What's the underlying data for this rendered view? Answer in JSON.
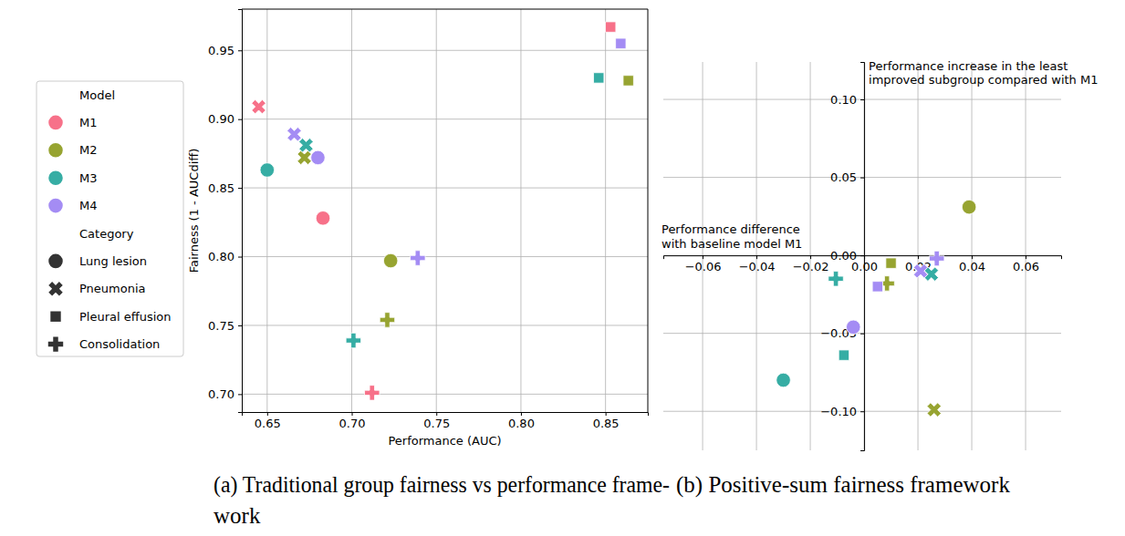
{
  "chart_data": [
    {
      "type": "scatter",
      "caption": "(a) Traditional group fairness vs performance frame-\nwork",
      "xlabel": "Performance (AUC)",
      "ylabel": "Fairness (1 - AUCdiff)",
      "xlim": [
        0.635,
        0.875
      ],
      "ylim": [
        0.687,
        0.98
      ],
      "xticks": [
        0.65,
        {
          "value": 0.7,
          "label": "0.70"
        },
        0.75,
        {
          "value": 0.8,
          "label": "0.80"
        },
        0.85
      ],
      "yticks": [
        {
          "value": 0.7,
          "label": "0.70"
        },
        0.75,
        {
          "value": 0.8,
          "label": "0.80"
        },
        0.85,
        {
          "value": 0.9,
          "label": "0.90"
        },
        0.95
      ],
      "grid": true,
      "legend": "left",
      "model_legend_title": "Model",
      "category_legend_title": "Category",
      "category_legend": [
        {
          "name": "Lung lesion",
          "marker": "circle"
        },
        {
          "name": "Pneumonia",
          "marker": "x"
        },
        {
          "name": "Pleural effusion",
          "marker": "square"
        },
        {
          "name": "Consolidation",
          "marker": "plus"
        }
      ],
      "series": [
        {
          "name": "M1",
          "color": "#f77189",
          "x": [
            0.683,
            0.645,
            0.853,
            0.712
          ],
          "values": [
            0.828,
            0.909,
            0.967,
            0.701
          ]
        },
        {
          "name": "M2",
          "color": "#97a431",
          "x": [
            0.723,
            0.672,
            0.8635,
            0.721
          ],
          "values": [
            0.797,
            0.872,
            0.928,
            0.754
          ]
        },
        {
          "name": "M3",
          "color": "#36ada4",
          "x": [
            0.65,
            0.673,
            0.846,
            0.701
          ],
          "values": [
            0.863,
            0.881,
            0.93,
            0.739
          ]
        },
        {
          "name": "M4",
          "color": "#a48cf4",
          "x": [
            0.68,
            0.666,
            0.859,
            0.739
          ],
          "values": [
            0.872,
            0.889,
            0.955,
            0.799
          ]
        }
      ]
    },
    {
      "type": "scatter",
      "caption": "(b) Positive-sum fairness framework",
      "xlabel": "Performance difference\nwith baseline model M1",
      "ylabel": "Performance increase in the least\nimproved subgroup compared with M1",
      "xlim": [
        -0.0746,
        0.0732
      ],
      "ylim": [
        -0.125,
        0.124
      ],
      "xticks": [
        {
          "value": -0.06,
          "label": "−0.06"
        },
        {
          "value": -0.04,
          "label": "−0.04"
        },
        {
          "value": -0.02,
          "label": "−0.02"
        },
        {
          "value": 0,
          "label": "0.00"
        },
        0.02,
        0.04,
        0.06
      ],
      "yticks": [
        {
          "value": -0.1,
          "label": "−0.10"
        },
        {
          "value": -0.05,
          "label": "−0.05"
        },
        {
          "value": 0,
          "label": "0.00"
        },
        0.05,
        {
          "value": 0.1,
          "label": "0.10"
        }
      ],
      "grid": true,
      "series": [
        {
          "color": "#97a431",
          "x": [
            0.039,
            0.026,
            0.01,
            0.0085
          ],
          "values": [
            0.031,
            -0.099,
            -0.005,
            -0.018
          ]
        },
        {
          "color": "#36ada4",
          "x": [
            -0.03,
            0.025,
            -0.0075,
            -0.0105
          ],
          "values": [
            -0.08,
            -0.012,
            -0.064,
            -0.015
          ]
        },
        {
          "color": "#a48cf4",
          "x": [
            -0.004,
            0.021,
            0.005,
            0.027
          ],
          "values": [
            -0.046,
            -0.01,
            -0.02,
            -0.002
          ]
        }
      ]
    }
  ]
}
